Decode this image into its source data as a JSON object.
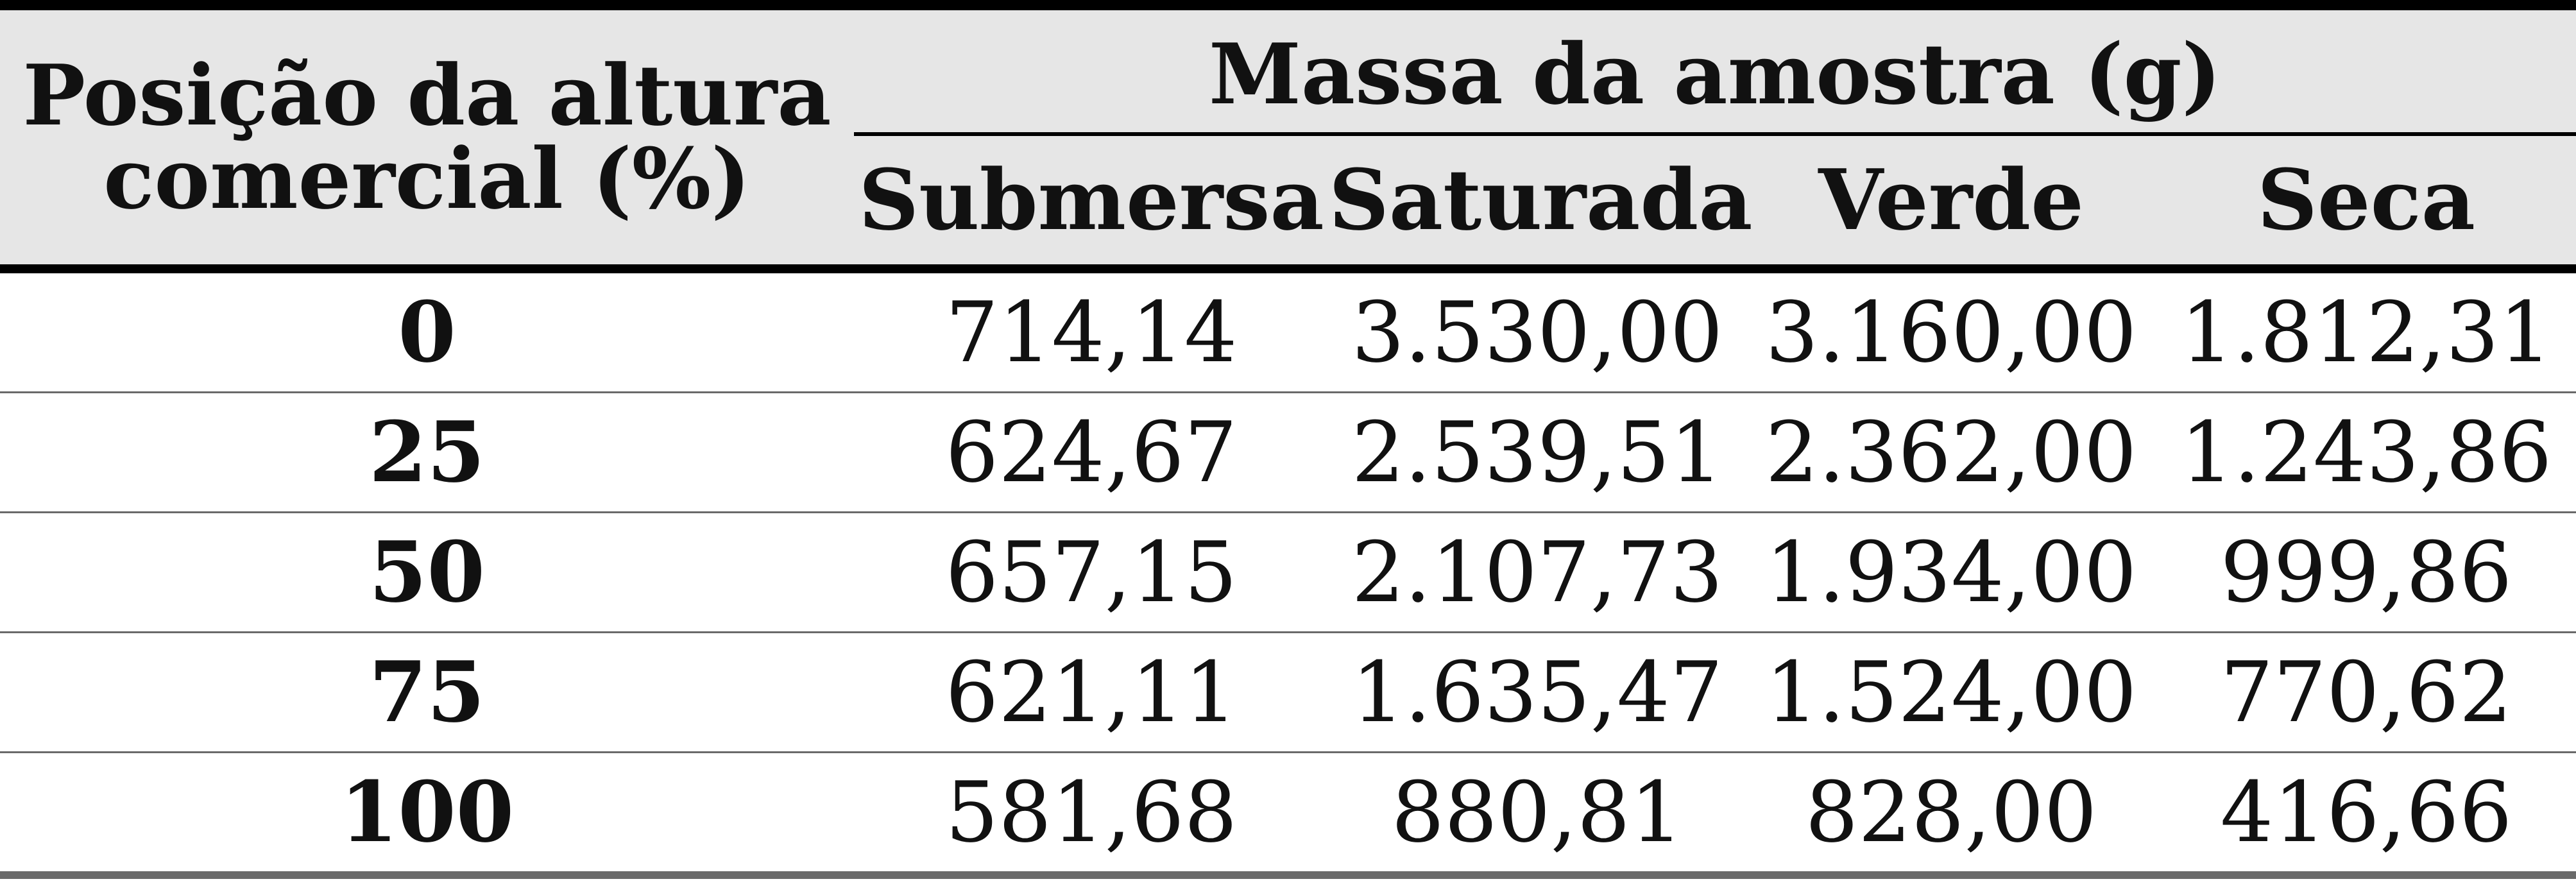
{
  "table": {
    "left_header_line1": "Posição da altura",
    "left_header_line2": "comercial (%)",
    "group_header": "Massa da amostra (g)",
    "sub_headers": [
      "Submersa",
      "Saturada",
      "Verde",
      "Seca"
    ],
    "rows": [
      {
        "pos": "0",
        "cells": [
          "714,14",
          "3.530,00",
          "3.160,00",
          "1.812,31"
        ]
      },
      {
        "pos": "25",
        "cells": [
          "624,67",
          "2.539,51",
          "2.362,00",
          "1.243,86"
        ]
      },
      {
        "pos": "50",
        "cells": [
          "657,15",
          "2.107,73",
          "1.934,00",
          "999,86"
        ]
      },
      {
        "pos": "75",
        "cells": [
          "621,11",
          "1.635,47",
          "1.524,00",
          "770,62"
        ]
      },
      {
        "pos": "100",
        "cells": [
          "581,68",
          "880,81",
          "828,00",
          "416,66"
        ]
      }
    ]
  }
}
